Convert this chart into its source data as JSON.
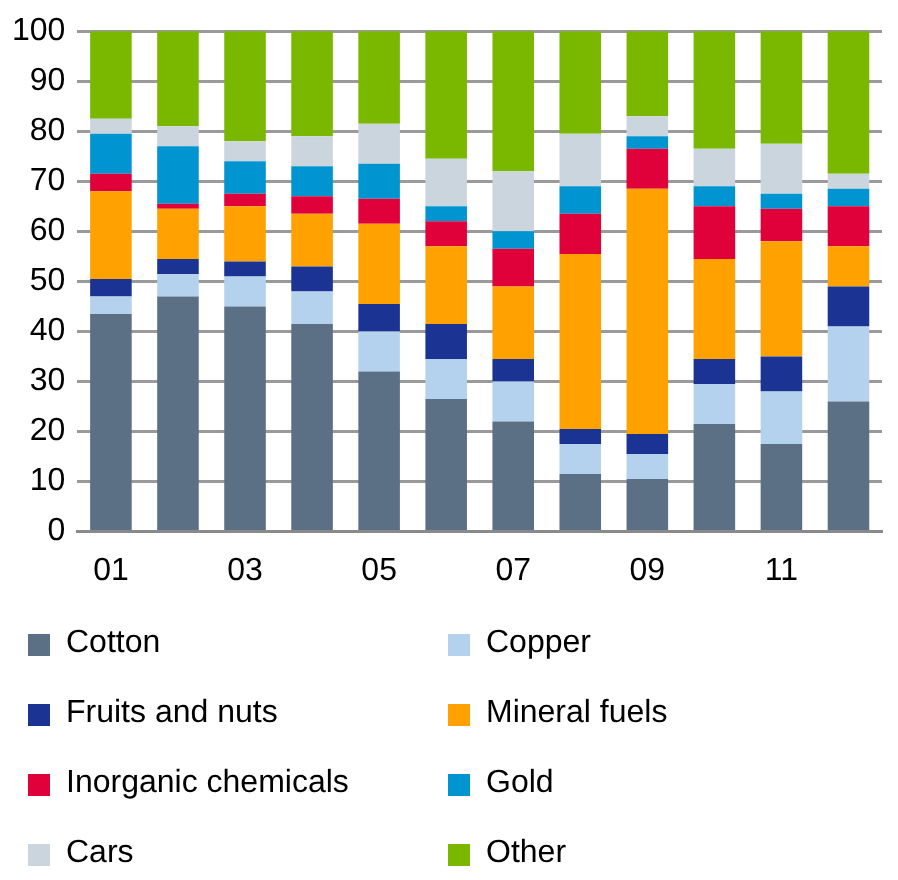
{
  "chart_data": {
    "type": "bar",
    "stacked": true,
    "categories": [
      "01",
      null,
      "03",
      null,
      "05",
      null,
      "07",
      null,
      "09",
      null,
      "11",
      null
    ],
    "series": [
      {
        "name": "Cotton",
        "color": "#5b7085",
        "values": [
          43.5,
          47,
          45,
          41.5,
          32,
          26.5,
          22,
          11.5,
          10.5,
          21.5,
          17.5,
          26
        ]
      },
      {
        "name": "Copper",
        "color": "#b4d2ee",
        "values": [
          3.5,
          4.5,
          6,
          6.5,
          8,
          8,
          8,
          6,
          5,
          8,
          10.5,
          15
        ]
      },
      {
        "name": "Fruits and nuts",
        "color": "#1b3493",
        "values": [
          3.5,
          3,
          3,
          5,
          5.5,
          7,
          4.5,
          3,
          4,
          5,
          7,
          8
        ]
      },
      {
        "name": "Mineral fuels",
        "color": "#ffa100",
        "values": [
          17.5,
          10,
          11,
          10.5,
          16,
          15.5,
          14.5,
          35,
          49,
          20,
          23,
          8
        ]
      },
      {
        "name": "Inorganic chemicals",
        "color": "#e0003a",
        "values": [
          3.5,
          1,
          2.5,
          3.5,
          5,
          5,
          7.5,
          8,
          8,
          10.5,
          6.5,
          8
        ]
      },
      {
        "name": "Gold",
        "color": "#0095d0",
        "values": [
          8,
          11.5,
          6.5,
          6,
          7,
          3,
          3.5,
          5.5,
          2.5,
          4,
          3,
          3.5
        ]
      },
      {
        "name": "Cars",
        "color": "#cbd5dd",
        "values": [
          3,
          4,
          4,
          6,
          8,
          9.5,
          12,
          10.5,
          4,
          7.5,
          10,
          3
        ]
      },
      {
        "name": "Other",
        "color": "#7ab800",
        "values": [
          17.5,
          19,
          22,
          21,
          18.5,
          25.5,
          28,
          20.5,
          17,
          23.5,
          22.5,
          28.5
        ]
      }
    ],
    "ylim": [
      0,
      100
    ],
    "yticks": [
      0,
      10,
      20,
      30,
      40,
      50,
      60,
      70,
      80,
      90,
      100
    ],
    "grid": "y",
    "legend": "bottom"
  }
}
